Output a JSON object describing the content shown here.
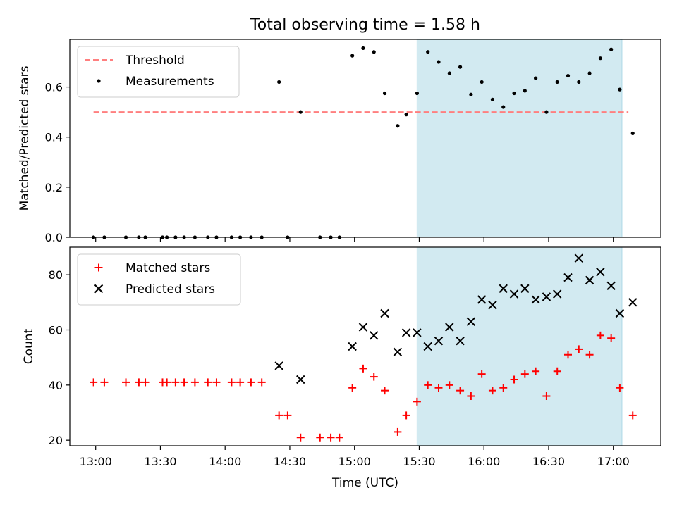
{
  "title": "Total observing time = 1.58 h",
  "chart_data": [
    {
      "type": "scatter",
      "panel": "top",
      "ylabel": "Matched/Predicted stars",
      "ylim": [
        0,
        0.79
      ],
      "yticks": [
        0.0,
        0.2,
        0.4,
        0.6
      ],
      "ytick_labels": [
        "0.0",
        "0.2",
        "0.4",
        "0.6"
      ],
      "xlim": [
        "12:48",
        "17:22"
      ],
      "legend_position": "upper-left",
      "threshold": {
        "name": "Threshold",
        "value": 0.5,
        "x_range": [
          "12:59",
          "17:07"
        ],
        "color": "#ff7f7f",
        "style": "dashed"
      },
      "highlight": {
        "x_range": [
          "15:29",
          "17:04"
        ],
        "color": "#add8e6"
      },
      "series": [
        {
          "name": "Measurements",
          "color": "#000000",
          "marker": "dot",
          "points": [
            [
              "12:59",
              0.0
            ],
            [
              "13:04",
              0.0
            ],
            [
              "13:14",
              0.0
            ],
            [
              "13:20",
              0.0
            ],
            [
              "13:23",
              0.0
            ],
            [
              "13:31",
              0.0
            ],
            [
              "13:33",
              0.0
            ],
            [
              "13:37",
              0.0
            ],
            [
              "13:41",
              0.0
            ],
            [
              "13:46",
              0.0
            ],
            [
              "13:52",
              0.0
            ],
            [
              "13:56",
              0.0
            ],
            [
              "14:03",
              0.0
            ],
            [
              "14:07",
              0.0
            ],
            [
              "14:12",
              0.0
            ],
            [
              "14:17",
              0.0
            ],
            [
              "14:25",
              0.62
            ],
            [
              "14:29",
              0.0
            ],
            [
              "14:35",
              0.5
            ],
            [
              "14:44",
              0.0
            ],
            [
              "14:49",
              0.0
            ],
            [
              "14:53",
              0.0
            ],
            [
              "14:59",
              0.725
            ],
            [
              "15:04",
              0.755
            ],
            [
              "15:09",
              0.74
            ],
            [
              "15:14",
              0.575
            ],
            [
              "15:20",
              0.445
            ],
            [
              "15:24",
              0.49
            ],
            [
              "15:29",
              0.575
            ],
            [
              "15:34",
              0.74
            ],
            [
              "15:39",
              0.7
            ],
            [
              "15:44",
              0.655
            ],
            [
              "15:49",
              0.68
            ],
            [
              "15:54",
              0.57
            ],
            [
              "15:59",
              0.62
            ],
            [
              "16:04",
              0.55
            ],
            [
              "16:09",
              0.52
            ],
            [
              "16:14",
              0.575
            ],
            [
              "16:19",
              0.585
            ],
            [
              "16:24",
              0.635
            ],
            [
              "16:29",
              0.5
            ],
            [
              "16:34",
              0.62
            ],
            [
              "16:39",
              0.645
            ],
            [
              "16:44",
              0.62
            ],
            [
              "16:49",
              0.655
            ],
            [
              "16:54",
              0.715
            ],
            [
              "16:59",
              0.75
            ],
            [
              "17:03",
              0.59
            ],
            [
              "17:09",
              0.415
            ]
          ]
        }
      ]
    },
    {
      "type": "scatter",
      "panel": "bottom",
      "ylabel": "Count",
      "xlabel": "Time (UTC)",
      "ylim": [
        18,
        90
      ],
      "yticks": [
        20,
        40,
        60,
        80
      ],
      "ytick_labels": [
        "20",
        "40",
        "60",
        "80"
      ],
      "xlim": [
        "12:48",
        "17:22"
      ],
      "xticks": [
        "13:00",
        "13:30",
        "14:00",
        "14:30",
        "15:00",
        "15:30",
        "16:00",
        "16:30",
        "17:00"
      ],
      "xtick_labels": [
        "13:00",
        "13:30",
        "14:00",
        "14:30",
        "15:00",
        "15:30",
        "16:00",
        "16:30",
        "17:00"
      ],
      "legend_position": "upper-left",
      "highlight": {
        "x_range": [
          "15:29",
          "17:04"
        ],
        "color": "#add8e6"
      },
      "series": [
        {
          "name": "Matched stars",
          "color": "#ff0000",
          "marker": "plus",
          "points": [
            [
              "12:59",
              41
            ],
            [
              "13:04",
              41
            ],
            [
              "13:14",
              41
            ],
            [
              "13:20",
              41
            ],
            [
              "13:23",
              41
            ],
            [
              "13:31",
              41
            ],
            [
              "13:33",
              41
            ],
            [
              "13:37",
              41
            ],
            [
              "13:41",
              41
            ],
            [
              "13:46",
              41
            ],
            [
              "13:52",
              41
            ],
            [
              "13:56",
              41
            ],
            [
              "14:03",
              41
            ],
            [
              "14:07",
              41
            ],
            [
              "14:12",
              41
            ],
            [
              "14:17",
              41
            ],
            [
              "14:25",
              29
            ],
            [
              "14:29",
              29
            ],
            [
              "14:35",
              21
            ],
            [
              "14:44",
              21
            ],
            [
              "14:49",
              21
            ],
            [
              "14:53",
              21
            ],
            [
              "14:59",
              39
            ],
            [
              "15:04",
              46
            ],
            [
              "15:09",
              43
            ],
            [
              "15:14",
              38
            ],
            [
              "15:20",
              23
            ],
            [
              "15:24",
              29
            ],
            [
              "15:29",
              34
            ],
            [
              "15:34",
              40
            ],
            [
              "15:39",
              39
            ],
            [
              "15:44",
              40
            ],
            [
              "15:49",
              38
            ],
            [
              "15:54",
              36
            ],
            [
              "15:59",
              44
            ],
            [
              "16:04",
              38
            ],
            [
              "16:09",
              39
            ],
            [
              "16:14",
              42
            ],
            [
              "16:19",
              44
            ],
            [
              "16:24",
              45
            ],
            [
              "16:29",
              36
            ],
            [
              "16:34",
              45
            ],
            [
              "16:39",
              51
            ],
            [
              "16:44",
              53
            ],
            [
              "16:49",
              51
            ],
            [
              "16:54",
              58
            ],
            [
              "16:59",
              57
            ],
            [
              "17:03",
              39
            ],
            [
              "17:09",
              29
            ]
          ]
        },
        {
          "name": "Predicted stars",
          "color": "#000000",
          "marker": "x",
          "points": [
            [
              "14:25",
              47
            ],
            [
              "14:35",
              42
            ],
            [
              "14:59",
              54
            ],
            [
              "15:04",
              61
            ],
            [
              "15:09",
              58
            ],
            [
              "15:14",
              66
            ],
            [
              "15:20",
              52
            ],
            [
              "15:24",
              59
            ],
            [
              "15:29",
              59
            ],
            [
              "15:34",
              54
            ],
            [
              "15:39",
              56
            ],
            [
              "15:44",
              61
            ],
            [
              "15:49",
              56
            ],
            [
              "15:54",
              63
            ],
            [
              "15:59",
              71
            ],
            [
              "16:04",
              69
            ],
            [
              "16:09",
              75
            ],
            [
              "16:14",
              73
            ],
            [
              "16:19",
              75
            ],
            [
              "16:24",
              71
            ],
            [
              "16:29",
              72
            ],
            [
              "16:34",
              73
            ],
            [
              "16:39",
              79
            ],
            [
              "16:44",
              86
            ],
            [
              "16:49",
              78
            ],
            [
              "16:54",
              81
            ],
            [
              "16:59",
              76
            ],
            [
              "17:03",
              66
            ],
            [
              "17:09",
              70
            ]
          ]
        }
      ]
    }
  ]
}
